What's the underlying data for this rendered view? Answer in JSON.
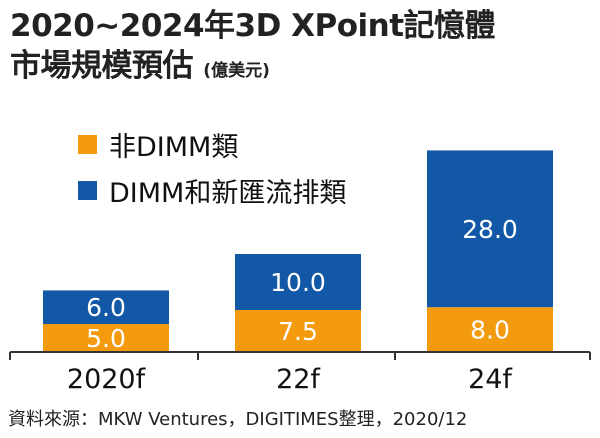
{
  "title_line1": "2020~2024年3D XPoint記憶體",
  "title_line2": "市場規模預估",
  "unit": "(億美元)",
  "source": "資料來源：MKW Ventures，DIGITIMES整理，2020/12",
  "colors": {
    "orange": "#F39A0E",
    "blue": "#1258A6",
    "axis": "#333333"
  },
  "chart_data": {
    "type": "bar",
    "stacked": true,
    "title": "2020~2024年3D XPoint記憶體市場規模預估",
    "ylabel": "(億美元)",
    "categories": [
      "2020f",
      "22f",
      "24f"
    ],
    "series": [
      {
        "name": "非DIMM類",
        "color": "#F39A0E",
        "values": [
          5.0,
          7.5,
          8.0
        ],
        "labels": [
          "5.0",
          "7.5",
          "8.0"
        ]
      },
      {
        "name": "DIMM和新匯流排類",
        "color": "#1258A6",
        "values": [
          6.0,
          10.0,
          28.0
        ],
        "labels": [
          "6.0",
          "10.0",
          "28.0"
        ]
      }
    ],
    "ylim": [
      0,
      36
    ],
    "grid": false,
    "legend_position": "top-left"
  }
}
